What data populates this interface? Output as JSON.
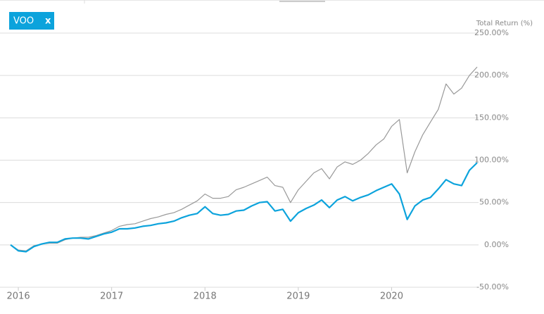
{
  "chart_data": {
    "type": "line",
    "y_axis_label": "Total Return (%)",
    "legend_close": "x",
    "categories": [
      null,
      "2016",
      null,
      null,
      null,
      null,
      null,
      null,
      null,
      null,
      null,
      null,
      null,
      "2017",
      null,
      null,
      null,
      null,
      null,
      null,
      null,
      null,
      null,
      null,
      null,
      "2018",
      null,
      null,
      null,
      null,
      null,
      null,
      null,
      null,
      null,
      null,
      null,
      "2019",
      null,
      null,
      null,
      null,
      null,
      null,
      null,
      null,
      null,
      null,
      null,
      "2020",
      null,
      null,
      null,
      null,
      null,
      null,
      null,
      null,
      null,
      null,
      null
    ],
    "series": [
      {
        "color": "#999999",
        "values": [
          0,
          -6,
          -7,
          -1,
          1,
          2,
          2,
          6,
          8,
          9,
          9,
          11,
          14,
          17,
          22,
          24,
          25,
          28,
          31,
          33,
          36,
          38,
          42,
          47,
          52,
          60,
          55,
          55,
          57,
          65,
          68,
          72,
          76,
          80,
          70,
          68,
          50,
          65,
          75,
          85,
          90,
          78,
          92,
          98,
          95,
          100,
          108,
          118,
          125,
          140,
          148,
          85,
          110,
          130,
          145,
          160,
          190,
          178,
          185,
          200,
          210
        ]
      },
      {
        "name": "VOO",
        "color": "#0ca3dc",
        "values": [
          0,
          -7,
          -8,
          -2,
          1,
          3,
          3,
          7,
          8,
          8,
          7,
          10,
          13,
          15,
          19,
          19,
          20,
          22,
          23,
          25,
          26,
          28,
          32,
          35,
          37,
          45,
          37,
          35,
          36,
          40,
          41,
          46,
          50,
          51,
          40,
          42,
          28,
          38,
          43,
          47,
          53,
          44,
          53,
          57,
          52,
          56,
          59,
          64,
          68,
          72,
          60,
          30,
          46,
          53,
          56,
          66,
          77,
          72,
          70,
          88,
          97
        ]
      }
    ],
    "ylim": [
      -50,
      250
    ],
    "yticks": [
      {
        "value": -50,
        "label": "-50.00%"
      },
      {
        "value": 0,
        "label": "0.00%"
      },
      {
        "value": 50,
        "label": "50.00%"
      },
      {
        "value": 100,
        "label": "100.00%"
      },
      {
        "value": 150,
        "label": "150.00%"
      },
      {
        "value": 200,
        "label": "200.00%"
      },
      {
        "value": 250,
        "label": "250.00%"
      }
    ],
    "grid": true
  }
}
